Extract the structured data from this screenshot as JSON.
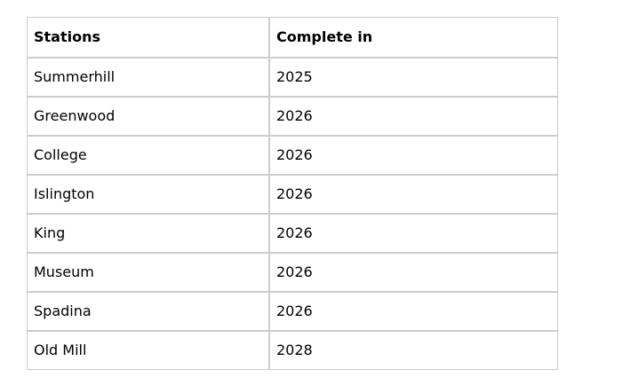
{
  "table": {
    "headers": [
      "Stations",
      "Complete in"
    ],
    "rows": [
      {
        "station": "Summerhill",
        "complete_in": "2025"
      },
      {
        "station": "Greenwood",
        "complete_in": "2026"
      },
      {
        "station": "College",
        "complete_in": "2026"
      },
      {
        "station": "Islington",
        "complete_in": "2026"
      },
      {
        "station": "King",
        "complete_in": "2026"
      },
      {
        "station": "Museum",
        "complete_in": "2026"
      },
      {
        "station": "Spadina",
        "complete_in": "2026"
      },
      {
        "station": "Old Mill",
        "complete_in": "2028"
      }
    ]
  },
  "chart_data": {
    "type": "table",
    "title": "",
    "columns": [
      "Stations",
      "Complete in"
    ],
    "rows": [
      [
        "Summerhill",
        2025
      ],
      [
        "Greenwood",
        2026
      ],
      [
        "College",
        2026
      ],
      [
        "Islington",
        2026
      ],
      [
        "King",
        2026
      ],
      [
        "Museum",
        2026
      ],
      [
        "Spadina",
        2026
      ],
      [
        "Old Mill",
        2028
      ]
    ]
  },
  "colors": {
    "border": "#cccccc",
    "text": "#000000",
    "background": "#ffffff"
  }
}
